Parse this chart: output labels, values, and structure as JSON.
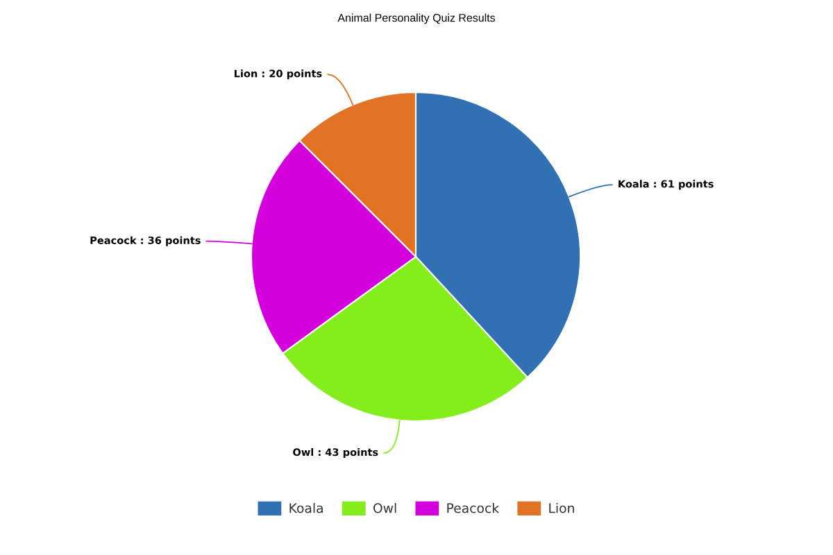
{
  "chart_data": {
    "type": "pie",
    "title": "Animal Personality Quiz Results",
    "categories": [
      "Koala",
      "Owl",
      "Peacock",
      "Lion"
    ],
    "values": [
      61,
      43,
      36,
      20
    ],
    "colors": [
      "#3170b2",
      "#84ee1d",
      "#d400dc",
      "#e27226"
    ],
    "value_labels": [
      "Koala : 61 points",
      "Owl : 43 points",
      "Peacock : 36 points",
      "Lion : 20 points"
    ],
    "legend": "bottom"
  }
}
